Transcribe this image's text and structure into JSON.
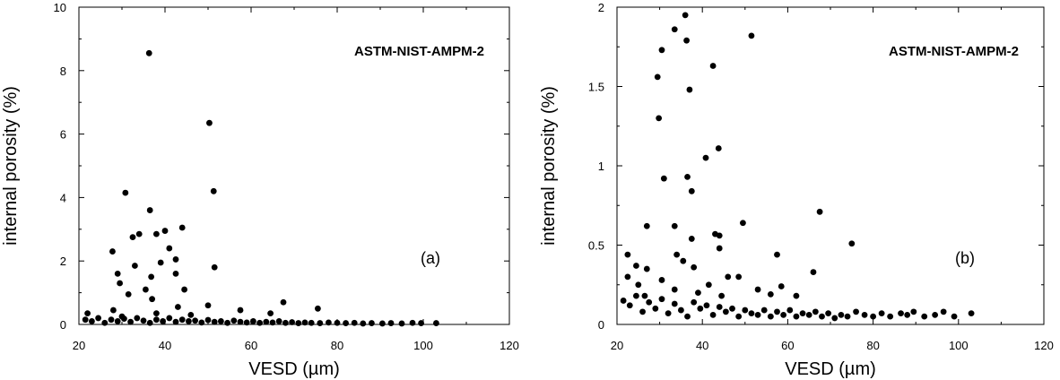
{
  "chart_data": [
    {
      "type": "scatter",
      "title": "ASTM-NIST-AMPM-2",
      "panel_label": "(a)",
      "xlabel": "VESD (µm)",
      "ylabel": "internal porosity (%)",
      "xlim": [
        20,
        120
      ],
      "ylim": [
        0,
        10
      ],
      "xticks": [
        "20",
        "40",
        "60",
        "80",
        "100",
        "120"
      ],
      "yticks": [
        "0",
        "2",
        "4",
        "6",
        "8",
        "10"
      ],
      "grid": false,
      "points": [
        [
          36.3,
          8.55
        ],
        [
          50.3,
          6.35
        ],
        [
          51.3,
          4.2
        ],
        [
          30.8,
          4.15
        ],
        [
          36.5,
          3.6
        ],
        [
          44.0,
          3.05
        ],
        [
          40.0,
          2.95
        ],
        [
          38.0,
          2.85
        ],
        [
          32.5,
          2.75
        ],
        [
          34.0,
          2.85
        ],
        [
          41.0,
          2.4
        ],
        [
          27.8,
          2.3
        ],
        [
          42.5,
          2.05
        ],
        [
          39.0,
          1.95
        ],
        [
          33.0,
          1.85
        ],
        [
          51.5,
          1.8
        ],
        [
          29.0,
          1.6
        ],
        [
          42.5,
          1.6
        ],
        [
          36.8,
          1.5
        ],
        [
          29.5,
          1.3
        ],
        [
          44.5,
          1.1
        ],
        [
          35.5,
          1.1
        ],
        [
          31.5,
          0.95
        ],
        [
          37.0,
          0.8
        ],
        [
          50.0,
          0.6
        ],
        [
          67.5,
          0.7
        ],
        [
          75.5,
          0.5
        ],
        [
          57.5,
          0.45
        ],
        [
          64.5,
          0.35
        ],
        [
          43.0,
          0.55
        ],
        [
          38.0,
          0.35
        ],
        [
          28.0,
          0.45
        ],
        [
          22.0,
          0.35
        ],
        [
          46.0,
          0.3
        ],
        [
          30.0,
          0.25
        ],
        [
          21.5,
          0.15
        ],
        [
          23.0,
          0.1
        ],
        [
          24.5,
          0.2
        ],
        [
          26.0,
          0.05
        ],
        [
          27.5,
          0.15
        ],
        [
          29.0,
          0.1
        ],
        [
          30.5,
          0.18
        ],
        [
          32.0,
          0.08
        ],
        [
          33.5,
          0.2
        ],
        [
          35.0,
          0.12
        ],
        [
          36.5,
          0.05
        ],
        [
          38.0,
          0.15
        ],
        [
          39.5,
          0.1
        ],
        [
          41.0,
          0.2
        ],
        [
          42.5,
          0.08
        ],
        [
          44.0,
          0.15
        ],
        [
          45.5,
          0.1
        ],
        [
          47.0,
          0.12
        ],
        [
          48.5,
          0.06
        ],
        [
          50.0,
          0.14
        ],
        [
          51.5,
          0.08
        ],
        [
          53.0,
          0.1
        ],
        [
          54.5,
          0.05
        ],
        [
          56.0,
          0.12
        ],
        [
          57.5,
          0.08
        ],
        [
          59.0,
          0.06
        ],
        [
          60.5,
          0.1
        ],
        [
          62.0,
          0.05
        ],
        [
          63.5,
          0.08
        ],
        [
          65.0,
          0.06
        ],
        [
          66.5,
          0.1
        ],
        [
          68.0,
          0.05
        ],
        [
          69.5,
          0.07
        ],
        [
          71.0,
          0.04
        ],
        [
          72.5,
          0.06
        ],
        [
          74.0,
          0.05
        ],
        [
          76.0,
          0.04
        ],
        [
          78.0,
          0.06
        ],
        [
          80.0,
          0.05
        ],
        [
          82.0,
          0.04
        ],
        [
          84.0,
          0.05
        ],
        [
          86.0,
          0.03
        ],
        [
          88.0,
          0.04
        ],
        [
          90.5,
          0.03
        ],
        [
          92.5,
          0.04
        ],
        [
          95.0,
          0.03
        ],
        [
          97.5,
          0.05
        ],
        [
          99.5,
          0.04
        ],
        [
          103.0,
          0.04
        ]
      ]
    },
    {
      "type": "scatter",
      "title": "ASTM-NIST-AMPM-2",
      "panel_label": "(b)",
      "xlabel": "VESD (µm)",
      "ylabel": "internal porosity (%)",
      "xlim": [
        20,
        120
      ],
      "ylim": [
        0,
        2
      ],
      "xticks": [
        "20",
        "40",
        "60",
        "80",
        "100",
        "120"
      ],
      "yticks": [
        "0",
        "0.5",
        "1",
        "1.5",
        "2"
      ],
      "grid": false,
      "points": [
        [
          36.0,
          1.95
        ],
        [
          33.5,
          1.86
        ],
        [
          51.5,
          1.82
        ],
        [
          36.3,
          1.79
        ],
        [
          30.5,
          1.73
        ],
        [
          29.5,
          1.56
        ],
        [
          37.0,
          1.48
        ],
        [
          42.5,
          1.63
        ],
        [
          29.8,
          1.3
        ],
        [
          43.8,
          1.11
        ],
        [
          40.8,
          1.05
        ],
        [
          31.0,
          0.92
        ],
        [
          36.5,
          0.93
        ],
        [
          37.5,
          0.84
        ],
        [
          67.5,
          0.71
        ],
        [
          49.5,
          0.64
        ],
        [
          33.5,
          0.62
        ],
        [
          27.0,
          0.62
        ],
        [
          43.0,
          0.57
        ],
        [
          44.0,
          0.56
        ],
        [
          37.5,
          0.54
        ],
        [
          75.0,
          0.51
        ],
        [
          44.0,
          0.48
        ],
        [
          57.5,
          0.44
        ],
        [
          34.0,
          0.44
        ],
        [
          22.5,
          0.44
        ],
        [
          35.5,
          0.4
        ],
        [
          24.5,
          0.37
        ],
        [
          38.0,
          0.36
        ],
        [
          66.0,
          0.33
        ],
        [
          27.0,
          0.35
        ],
        [
          46.0,
          0.3
        ],
        [
          48.5,
          0.3
        ],
        [
          22.5,
          0.3
        ],
        [
          30.5,
          0.28
        ],
        [
          41.5,
          0.25
        ],
        [
          53.0,
          0.22
        ],
        [
          58.5,
          0.24
        ],
        [
          25.0,
          0.25
        ],
        [
          33.5,
          0.22
        ],
        [
          39.0,
          0.2
        ],
        [
          56.0,
          0.19
        ],
        [
          62.0,
          0.18
        ],
        [
          26.5,
          0.18
        ],
        [
          44.5,
          0.18
        ],
        [
          21.5,
          0.15
        ],
        [
          23.0,
          0.12
        ],
        [
          24.5,
          0.18
        ],
        [
          26.0,
          0.08
        ],
        [
          27.5,
          0.14
        ],
        [
          29.0,
          0.1
        ],
        [
          30.5,
          0.16
        ],
        [
          32.0,
          0.07
        ],
        [
          33.5,
          0.13
        ],
        [
          35.0,
          0.09
        ],
        [
          36.5,
          0.05
        ],
        [
          38.0,
          0.14
        ],
        [
          39.5,
          0.1
        ],
        [
          41.0,
          0.12
        ],
        [
          42.5,
          0.06
        ],
        [
          44.0,
          0.11
        ],
        [
          45.5,
          0.08
        ],
        [
          47.0,
          0.1
        ],
        [
          48.5,
          0.05
        ],
        [
          50.0,
          0.09
        ],
        [
          51.5,
          0.07
        ],
        [
          53.0,
          0.06
        ],
        [
          54.5,
          0.09
        ],
        [
          56.0,
          0.05
        ],
        [
          57.5,
          0.08
        ],
        [
          59.0,
          0.06
        ],
        [
          60.5,
          0.09
        ],
        [
          62.0,
          0.05
        ],
        [
          63.5,
          0.07
        ],
        [
          65.0,
          0.06
        ],
        [
          66.5,
          0.08
        ],
        [
          68.0,
          0.05
        ],
        [
          69.5,
          0.07
        ],
        [
          71.0,
          0.04
        ],
        [
          72.5,
          0.06
        ],
        [
          74.0,
          0.05
        ],
        [
          76.0,
          0.08
        ],
        [
          78.0,
          0.06
        ],
        [
          80.0,
          0.05
        ],
        [
          82.0,
          0.07
        ],
        [
          84.0,
          0.05
        ],
        [
          86.5,
          0.07
        ],
        [
          88.0,
          0.06
        ],
        [
          89.5,
          0.08
        ],
        [
          92.0,
          0.05
        ],
        [
          94.5,
          0.06
        ],
        [
          96.5,
          0.08
        ],
        [
          99.0,
          0.05
        ],
        [
          103.0,
          0.07
        ]
      ]
    }
  ]
}
